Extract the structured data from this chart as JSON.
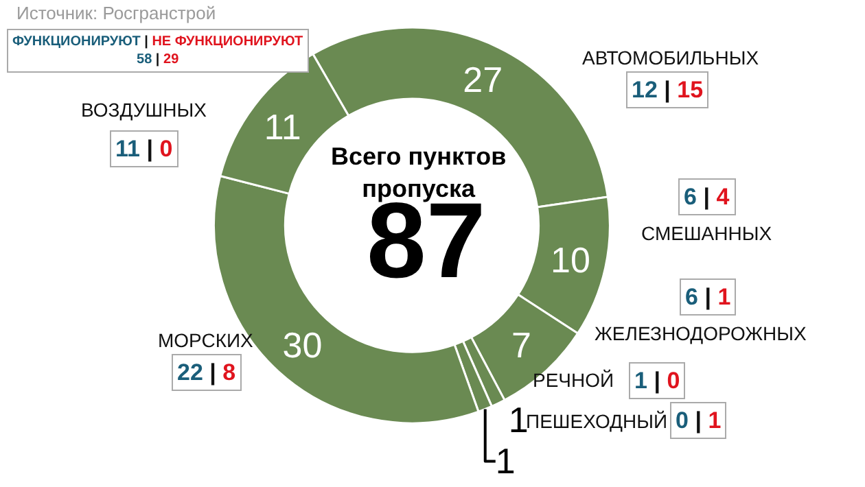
{
  "chart_data": {
    "type": "donut",
    "categories": [
      "АВТОМОБИЛЬНЫХ",
      "СМЕШАННЫХ",
      "ЖЕЛЕЗНОДОРОЖНЫХ",
      "РЕЧНОЙ",
      "ПЕШЕХОДНЫЙ",
      "МОРСКИХ",
      "ВОЗДУШНЫХ"
    ],
    "values": [
      27,
      10,
      7,
      1,
      1,
      30,
      11
    ],
    "colors": [
      "#6a8a52",
      "#6a8a52",
      "#6a8a52",
      "#6a8a52",
      "#6a8a52",
      "#6a8a52",
      "#6a8a52"
    ],
    "data_labels": true,
    "legend": false,
    "annotations": [
      "Источник: Росгранстрой",
      "ФУНКЦИОНИРУЮТ | НЕ ФУНКЦИОНИРУЮТ",
      "58 | 29",
      "Всего пунктов пропуска",
      "87",
      "12 | 15",
      "6 | 4",
      "6 | 1",
      "1 | 0",
      "0 | 1",
      "22 | 8",
      "11 | 0"
    ]
  }
}
